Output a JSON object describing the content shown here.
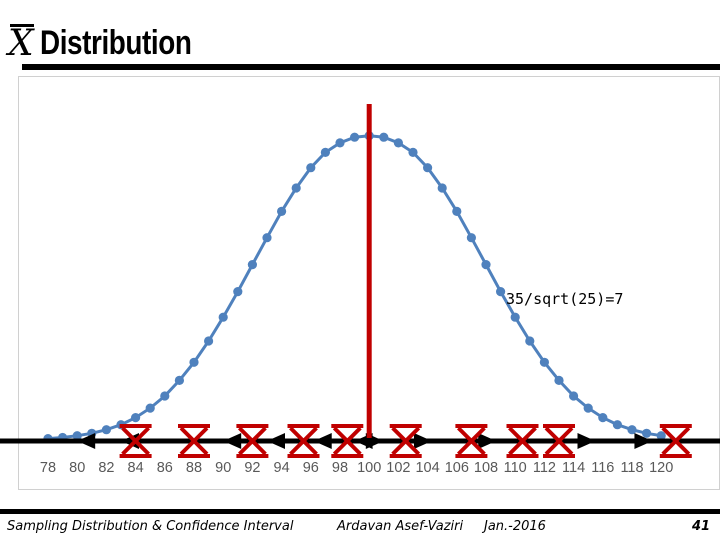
{
  "slide": {
    "title_symbol": "X",
    "title_text": "Distribution",
    "footer_left": "Sampling Distribution & Confidence Interval",
    "footer_author": "Ardavan Asef-Vaziri",
    "footer_date": "Jan.-2016",
    "page_number": "41"
  },
  "chart_data": {
    "type": "line",
    "title": "",
    "xlabel": "",
    "ylabel": "",
    "mean": 100,
    "std_error": 7,
    "annotation": "35/sqrt(25)=7",
    "xlim": [
      77,
      121
    ],
    "x_ticks": [
      78,
      80,
      82,
      84,
      86,
      88,
      90,
      92,
      94,
      96,
      98,
      100,
      102,
      104,
      106,
      108,
      110,
      112,
      114,
      116,
      118,
      120
    ],
    "series": [
      {
        "color": "#4f81bd",
        "points": [
          [
            78,
            0.0004
          ],
          [
            79,
            0.0007
          ],
          [
            80,
            0.0012
          ],
          [
            81,
            0.0019
          ],
          [
            82,
            0.0029
          ],
          [
            83,
            0.0043
          ],
          [
            84,
            0.0063
          ],
          [
            85,
            0.009
          ],
          [
            86,
            0.0124
          ],
          [
            87,
            0.0168
          ],
          [
            88,
            0.0219
          ],
          [
            89,
            0.0279
          ],
          [
            90,
            0.0346
          ],
          [
            91,
            0.0418
          ],
          [
            92,
            0.0494
          ],
          [
            93,
            0.057
          ],
          [
            94,
            0.0644
          ],
          [
            95,
            0.071
          ],
          [
            96,
            0.0767
          ],
          [
            97,
            0.081
          ],
          [
            98,
            0.0837
          ],
          [
            99,
            0.0853
          ],
          [
            100,
            0.0857
          ],
          [
            101,
            0.0853
          ],
          [
            102,
            0.0837
          ],
          [
            103,
            0.081
          ],
          [
            104,
            0.0767
          ],
          [
            105,
            0.071
          ],
          [
            106,
            0.0644
          ],
          [
            107,
            0.057
          ],
          [
            108,
            0.0494
          ],
          [
            109,
            0.0418
          ],
          [
            110,
            0.0346
          ],
          [
            111,
            0.0279
          ],
          [
            112,
            0.0219
          ],
          [
            113,
            0.0168
          ],
          [
            114,
            0.0124
          ],
          [
            115,
            0.009
          ],
          [
            116,
            0.0063
          ],
          [
            117,
            0.0043
          ],
          [
            118,
            0.0029
          ],
          [
            119,
            0.0019
          ],
          [
            120,
            0.0012
          ]
        ]
      }
    ],
    "sample_means": [
      84,
      88,
      92,
      95.5,
      98.5,
      102.5,
      107,
      110.5,
      113,
      121
    ],
    "arrow_heads": [
      {
        "x": 80,
        "direction": "left"
      },
      {
        "x": 83,
        "direction": "left"
      },
      {
        "x": 90,
        "direction": "left"
      },
      {
        "x": 93,
        "direction": "left"
      },
      {
        "x": 96.2,
        "direction": "left"
      },
      {
        "x": 99,
        "direction": "left"
      },
      {
        "x": 101,
        "direction": "right"
      },
      {
        "x": 104.3,
        "direction": "right"
      },
      {
        "x": 108.7,
        "direction": "right"
      },
      {
        "x": 115.5,
        "direction": "right"
      },
      {
        "x": 119.4,
        "direction": "right"
      }
    ],
    "colors": {
      "curve": "#4f81bd",
      "tick_label": "#595959",
      "mean_line": "#c00000",
      "sample_mark": "#c00000",
      "axis_arrow": "#000000"
    }
  }
}
